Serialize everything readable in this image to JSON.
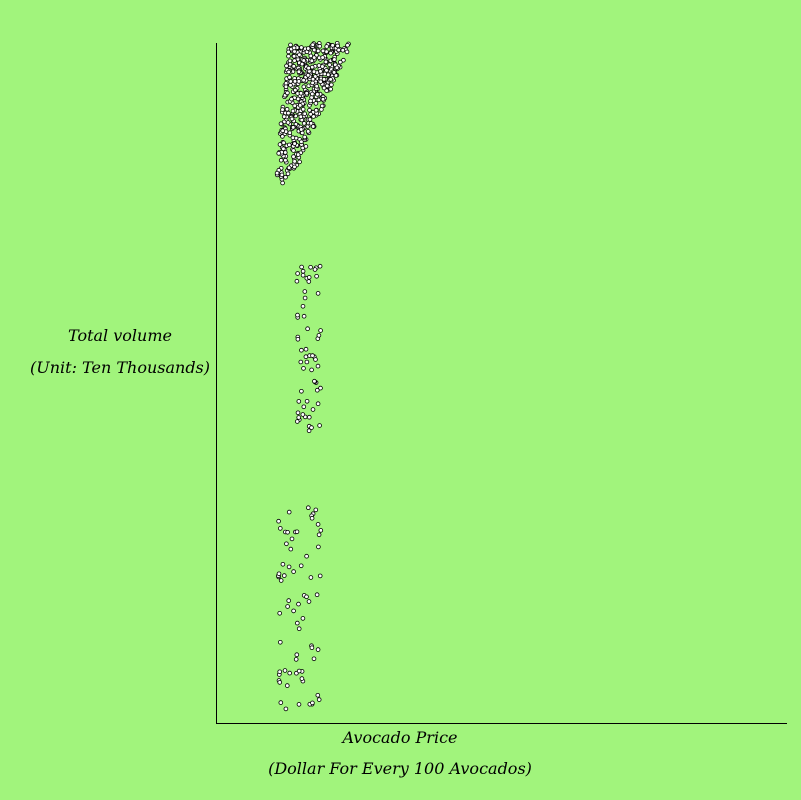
{
  "chart_data": {
    "type": "scatter",
    "title": "",
    "ylabel_line1": "Total volume",
    "ylabel_line2": "(Unit: Ten Thousands)",
    "xlabel_line1": "Avocado Price",
    "xlabel_line2": "(Dollar For Every 100 Avocados)",
    "xlim": [
      0,
      3.3
    ],
    "ylim": [
      0,
      4000
    ],
    "grid": false,
    "colors": {
      "background": "#a1f47c",
      "axis": "#000000",
      "marker_stroke": "#000000",
      "marker_fill": "#ffffff"
    },
    "clusters": [
      {
        "x_range": [
          0.27,
          0.82
        ],
        "y_range": [
          3150,
          4000
        ],
        "count": 520
      },
      {
        "x_range": [
          0.46,
          0.61
        ],
        "y_range": [
          1720,
          2720
        ],
        "count": 60
      },
      {
        "x_range": [
          0.36,
          0.61
        ],
        "y_range": [
          70,
          1340
        ],
        "count": 70
      }
    ]
  }
}
